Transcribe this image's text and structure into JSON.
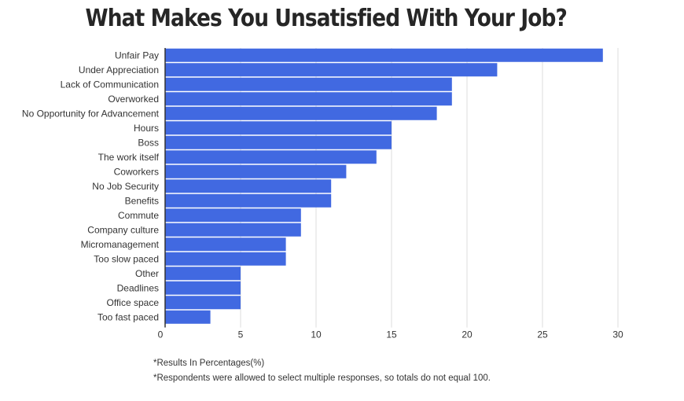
{
  "chart_data": {
    "type": "bar",
    "orientation": "horizontal",
    "title": "What Makes You Unsatisfied With Your Job?",
    "categories": [
      "Unfair Pay",
      "Under Appreciation",
      "Lack of Communication",
      "Overworked",
      "No Opportunity for Advancement",
      "Hours",
      "Boss",
      "The work itself",
      "Coworkers",
      "No Job Security",
      "Benefits",
      "Commute",
      "Company culture",
      "Micromanagement",
      "Too slow paced",
      "Other",
      "Deadlines",
      "Office space",
      "Too fast paced"
    ],
    "values": [
      29,
      22,
      19,
      19,
      18,
      15,
      15,
      14,
      12,
      11,
      11,
      9,
      9,
      8,
      8,
      5,
      5,
      5,
      3
    ],
    "xlim": [
      0,
      30
    ],
    "xticks": [
      "0",
      "5",
      "10",
      "15",
      "20",
      "25",
      "30"
    ],
    "xlabel": "",
    "ylabel": "",
    "grid": true,
    "bar_color": "#4169e1",
    "grid_color": "#dddddd",
    "axis_color": "#333333"
  },
  "notes": {
    "results": "*Results In Percentages(%)",
    "respondents": "*Respondents were allowed to select multiple responses, so totals do not equal 100."
  }
}
